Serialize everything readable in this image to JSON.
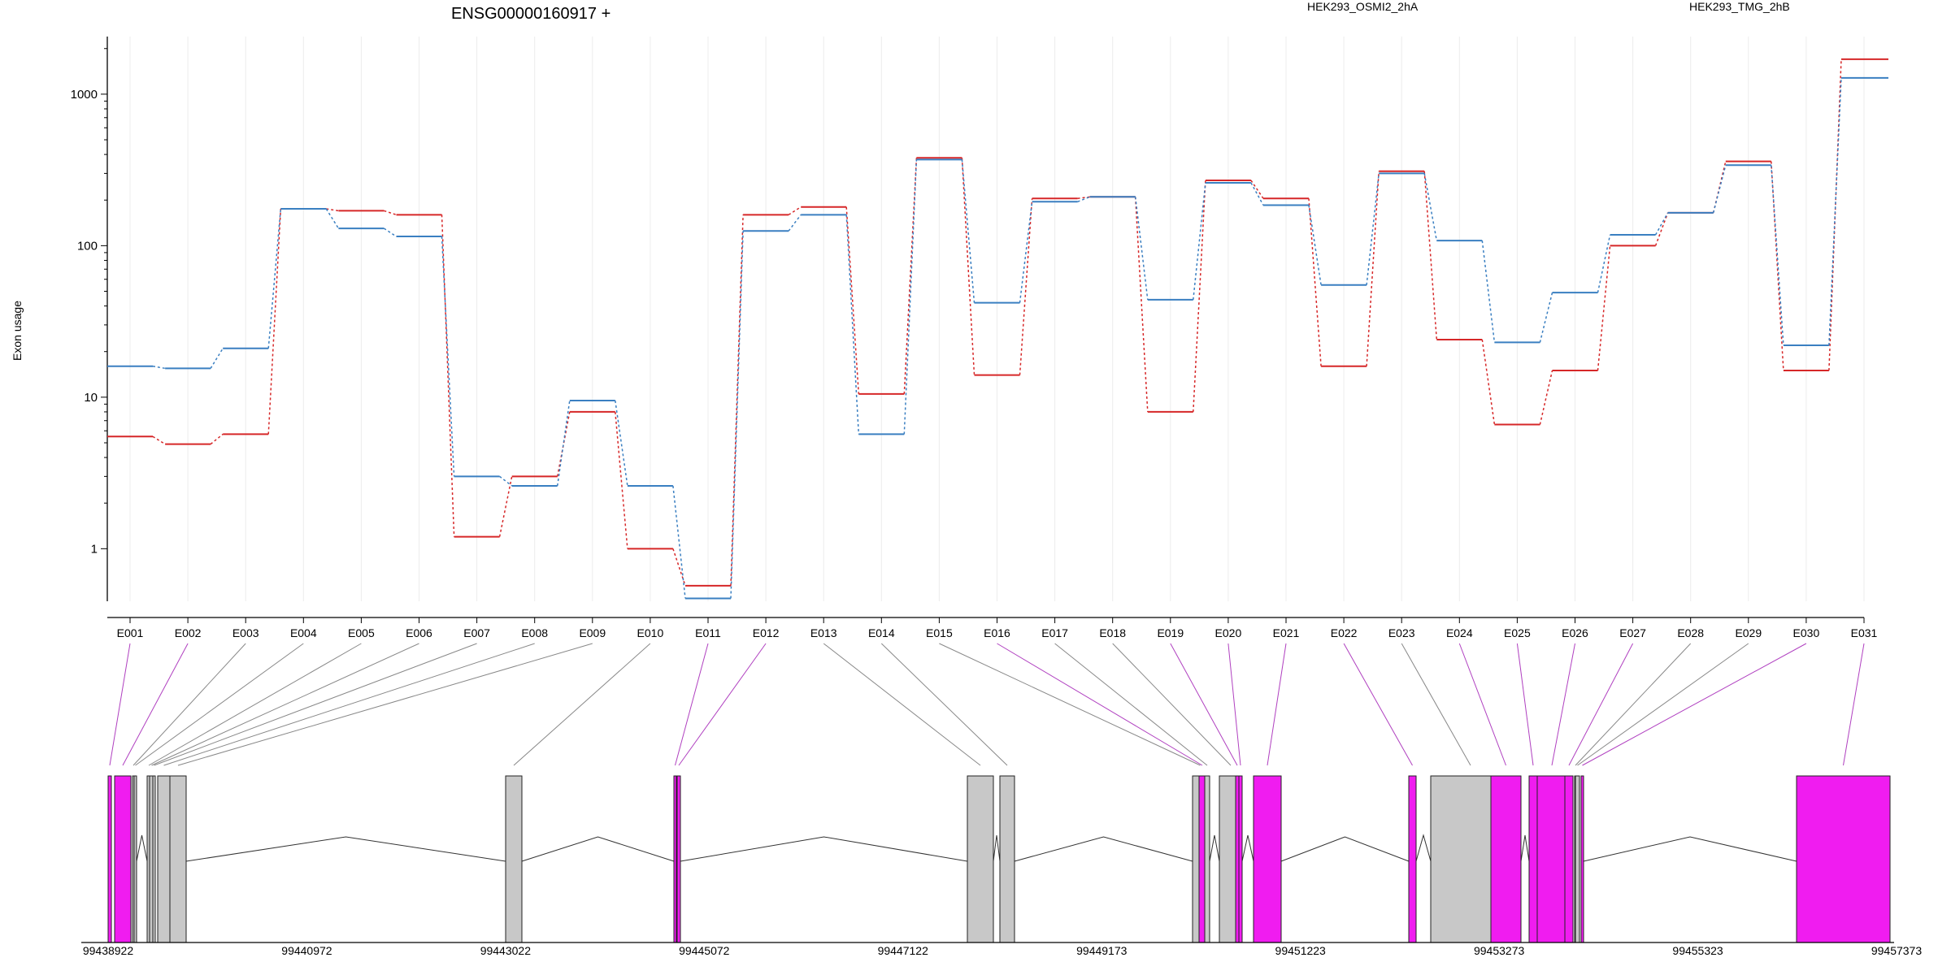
{
  "chart_data": {
    "type": "line",
    "title": "ENSG00000160917 +",
    "ylabel": "Exon usage",
    "yscale": "log",
    "ylim": [
      0.45,
      2400
    ],
    "yticks": [
      1,
      10,
      100,
      1000
    ],
    "ytick_labels": [
      "1",
      "10",
      "100",
      "1000"
    ],
    "categories": [
      "E001",
      "E002",
      "E003",
      "E004",
      "E005",
      "E006",
      "E007",
      "E008",
      "E009",
      "E010",
      "E011",
      "E012",
      "E013",
      "E014",
      "E015",
      "E016",
      "E017",
      "E018",
      "E019",
      "E020",
      "E021",
      "E022",
      "E023",
      "E024",
      "E025",
      "E026",
      "E027",
      "E028",
      "E029",
      "E030",
      "E031"
    ],
    "series": [
      {
        "name": "HEK293_OSMI2_2hA",
        "color": "#d62728",
        "values": [
          5.5,
          4.9,
          5.7,
          175,
          170,
          160,
          1.2,
          3.0,
          8.0,
          1.0,
          0.57,
          160,
          180,
          10.5,
          380,
          14,
          205,
          210,
          8.0,
          270,
          205,
          16,
          310,
          24,
          6.6,
          15,
          100,
          165,
          360,
          15,
          1700
        ]
      },
      {
        "name": "HEK293_TMG_2hB",
        "color": "#3a7fc1",
        "values": [
          16,
          15.5,
          21,
          175,
          130,
          115,
          3.0,
          2.6,
          9.5,
          2.6,
          0.47,
          125,
          160,
          5.7,
          370,
          42,
          195,
          210,
          44,
          260,
          185,
          55,
          300,
          108,
          23,
          49,
          118,
          165,
          340,
          22,
          1280
        ]
      }
    ],
    "genomic_coords": [
      "99438922",
      "99440972",
      "99443022",
      "99445072",
      "99447122",
      "99449173",
      "99451223",
      "99453273",
      "99455323",
      "99457373"
    ],
    "exon_highlight": [
      1,
      1,
      0,
      0,
      0,
      0,
      0,
      0,
      0,
      0,
      1,
      1,
      0,
      0,
      0,
      1,
      0,
      0,
      1,
      1,
      1,
      1,
      0,
      1,
      1,
      1,
      1,
      0,
      0,
      1,
      1
    ],
    "grid": "vertical",
    "legend": "top"
  }
}
